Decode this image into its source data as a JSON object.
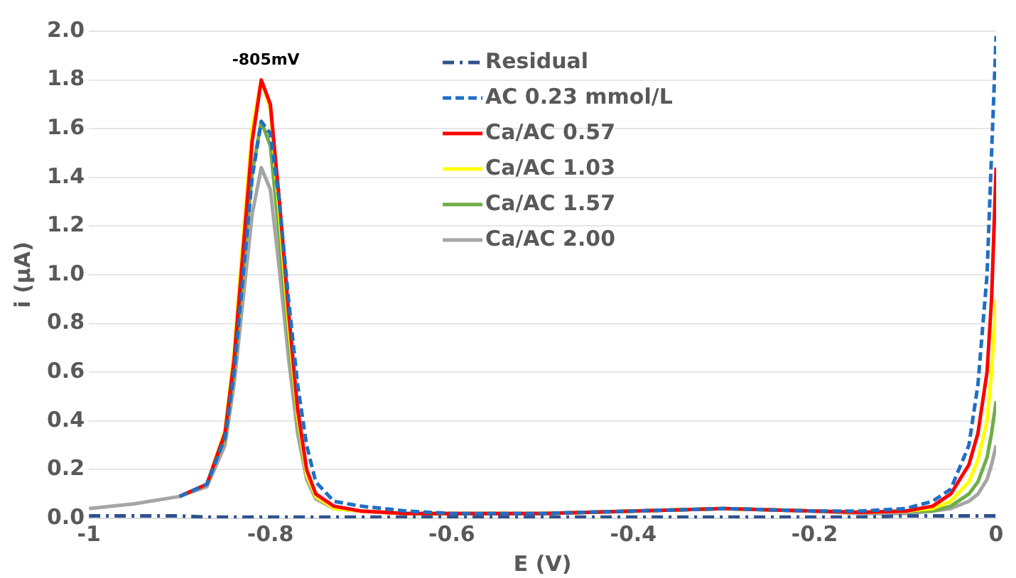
{
  "chart_data": {
    "type": "line",
    "xlabel": "E (V)",
    "ylabel": "i (µA)",
    "xlim": [
      -1,
      0
    ],
    "xticks": [
      -1,
      -0.8,
      -0.6,
      -0.4,
      -0.2,
      0
    ],
    "ylim": [
      0,
      2
    ],
    "yticks": [
      {
        "value": 0,
        "label": "0.0"
      },
      {
        "value": 0.2,
        "label": "0.2"
      },
      {
        "value": 0.4,
        "label": "0.4"
      },
      {
        "value": 0.6,
        "label": "0.6"
      },
      {
        "value": 0.8,
        "label": "0.8"
      },
      {
        "value": 1,
        "label": "1.0"
      },
      {
        "value": 1.2,
        "label": "1.2"
      },
      {
        "value": 1.4,
        "label": "1.4"
      },
      {
        "value": 1.6,
        "label": "1.6"
      },
      {
        "value": 1.8,
        "label": "1.8"
      },
      {
        "value": 2,
        "label": "2.0"
      }
    ],
    "grid": "y",
    "legend": "top right",
    "marker": "none",
    "annotations": [
      {
        "text": "-805mV",
        "x": -0.805,
        "y": 1.8
      }
    ],
    "x": [
      -1,
      -0.95,
      -0.9,
      -0.87,
      -0.85,
      -0.84,
      -0.83,
      -0.82,
      -0.81,
      -0.8,
      -0.79,
      -0.78,
      -0.77,
      -0.76,
      -0.75,
      -0.73,
      -0.7,
      -0.65,
      -0.6,
      -0.5,
      -0.4,
      -0.3,
      -0.2,
      -0.15,
      -0.1,
      -0.07,
      -0.05,
      -0.03,
      -0.02,
      -0.01,
      -0.005,
      0
    ],
    "series": [
      {
        "name": "Residual",
        "color": "#2f528f",
        "line_style": "dashdot",
        "values": [
          0.01,
          0.01,
          0.01,
          0.005,
          0.005,
          0.005,
          0.005,
          0.005,
          0.005,
          0.005,
          0.005,
          0.005,
          0.005,
          0.005,
          0.005,
          0.005,
          0.005,
          0.005,
          0.005,
          0.005,
          0.005,
          0.005,
          0.005,
          0.005,
          0.01,
          0.01,
          0.01,
          0.01,
          0.01,
          0.01,
          0.01,
          0.01
        ]
      },
      {
        "name": "AC 0.23 mmol/L",
        "color": "#1f6fc6",
        "line_style": "dashed",
        "values": [
          null,
          null,
          0.09,
          0.14,
          0.33,
          0.6,
          1.0,
          1.4,
          1.63,
          1.58,
          1.3,
          0.9,
          0.55,
          0.3,
          0.15,
          0.07,
          0.05,
          0.03,
          0.02,
          0.02,
          0.03,
          0.04,
          0.03,
          0.03,
          0.04,
          0.07,
          0.12,
          0.3,
          0.55,
          1.0,
          1.5,
          1.98
        ]
      },
      {
        "name": "Ca/AC 0.57",
        "color": "#ff0000",
        "line_style": "solid",
        "values": [
          null,
          null,
          0.09,
          0.14,
          0.35,
          0.65,
          1.1,
          1.55,
          1.8,
          1.7,
          1.3,
          0.85,
          0.45,
          0.2,
          0.1,
          0.05,
          0.03,
          0.02,
          0.02,
          0.02,
          0.03,
          0.04,
          0.03,
          0.025,
          0.03,
          0.05,
          0.1,
          0.22,
          0.35,
          0.6,
          0.9,
          1.44
        ]
      },
      {
        "name": "Ca/AC 1.03",
        "color": "#ffff00",
        "line_style": "solid",
        "values": [
          null,
          null,
          0.09,
          0.14,
          0.36,
          0.68,
          1.15,
          1.6,
          1.8,
          1.68,
          1.25,
          0.8,
          0.42,
          0.18,
          0.09,
          0.04,
          0.03,
          0.02,
          0.02,
          0.02,
          0.03,
          0.04,
          0.03,
          0.025,
          0.03,
          0.04,
          0.07,
          0.15,
          0.24,
          0.4,
          0.6,
          0.9
        ]
      },
      {
        "name": "Ca/AC 1.57",
        "color": "#70ad47",
        "line_style": "solid",
        "values": [
          null,
          null,
          0.09,
          0.14,
          0.33,
          0.6,
          1.02,
          1.42,
          1.63,
          1.53,
          1.15,
          0.75,
          0.4,
          0.18,
          0.09,
          0.04,
          0.03,
          0.02,
          0.02,
          0.02,
          0.03,
          0.04,
          0.03,
          0.025,
          0.03,
          0.03,
          0.05,
          0.1,
          0.15,
          0.25,
          0.35,
          0.48
        ]
      },
      {
        "name": "Ca/AC 2.00",
        "color": "#a5a5a5",
        "line_style": "solid",
        "values": [
          0.04,
          0.06,
          0.09,
          0.13,
          0.3,
          0.55,
          0.9,
          1.25,
          1.44,
          1.35,
          1.02,
          0.66,
          0.35,
          0.16,
          0.08,
          0.04,
          0.03,
          0.02,
          0.02,
          0.02,
          0.03,
          0.04,
          0.03,
          0.02,
          0.02,
          0.03,
          0.04,
          0.07,
          0.1,
          0.16,
          0.22,
          0.3
        ]
      }
    ]
  }
}
